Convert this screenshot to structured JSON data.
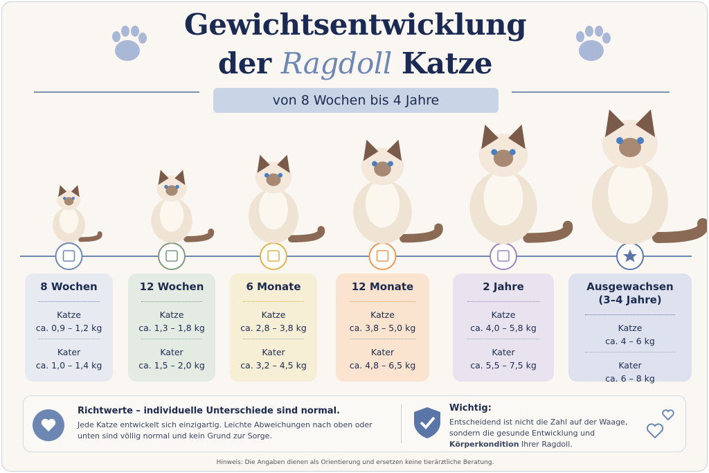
{
  "title": {
    "line1": "Gewichtsentwicklung",
    "line2_before": "der",
    "line2_highlight": "Ragdoll",
    "line2_after": "Katze"
  },
  "subtitle": "von 8 Wochen bis 4 Jahre",
  "stages": [
    {
      "label": "8 Wochen",
      "female_label": "Katze",
      "female": "ca. 0,9 – 1,2 kg",
      "male_label": "Kater",
      "male": "ca. 1,0 – 1,4 kg"
    },
    {
      "label": "12 Wochen",
      "female_label": "Katze",
      "female": "ca. 1,3 – 1,8 kg",
      "male_label": "Kater",
      "male": "ca. 1,5 – 2,0 kg"
    },
    {
      "label": "6 Monate",
      "female_label": "Katze",
      "female": "ca. 2,8 – 3,8 kg",
      "male_label": "Kater",
      "male": "ca. 3,2 – 4,5 kg"
    },
    {
      "label": "12 Monate",
      "female_label": "Katze",
      "female": "ca. 3,8 – 5,0 kg",
      "male_label": "Kater",
      "male": "ca. 4,8 – 6,5 kg"
    },
    {
      "label": "2 Jahre",
      "female_label": "Katze",
      "female": "ca. 4,0 – 5,8 kg",
      "male_label": "Kater",
      "male": "ca. 5,5 – 7,5 kg"
    },
    {
      "label": "Ausgewachsen (3–4 Jahre)",
      "female_label": "Katze",
      "female": "ca. 4 – 6 kg",
      "male_label": "Kater",
      "male": "ca. 6 – 8 kg"
    }
  ],
  "info_left": {
    "heading": "Richtwerte – individuelle Unterschiede sind normal.",
    "text": "Jede Katze entwickelt sich einzigartig. Leichte Abweichungen nach oben oder unten sind völlig normal und kein Grund zur Sorge."
  },
  "info_right": {
    "heading": "Wichtig:",
    "text_before": "Entscheidend ist nicht die Zahl auf der Waage, sondern die gesunde Entwicklung und",
    "text_bold": "Körperkondition",
    "text_after": "Ihrer Ragdoll."
  },
  "note": "Hinweis: Die Angaben dienen als Orientierung und ersetzen keine tierärztliche Beratung."
}
